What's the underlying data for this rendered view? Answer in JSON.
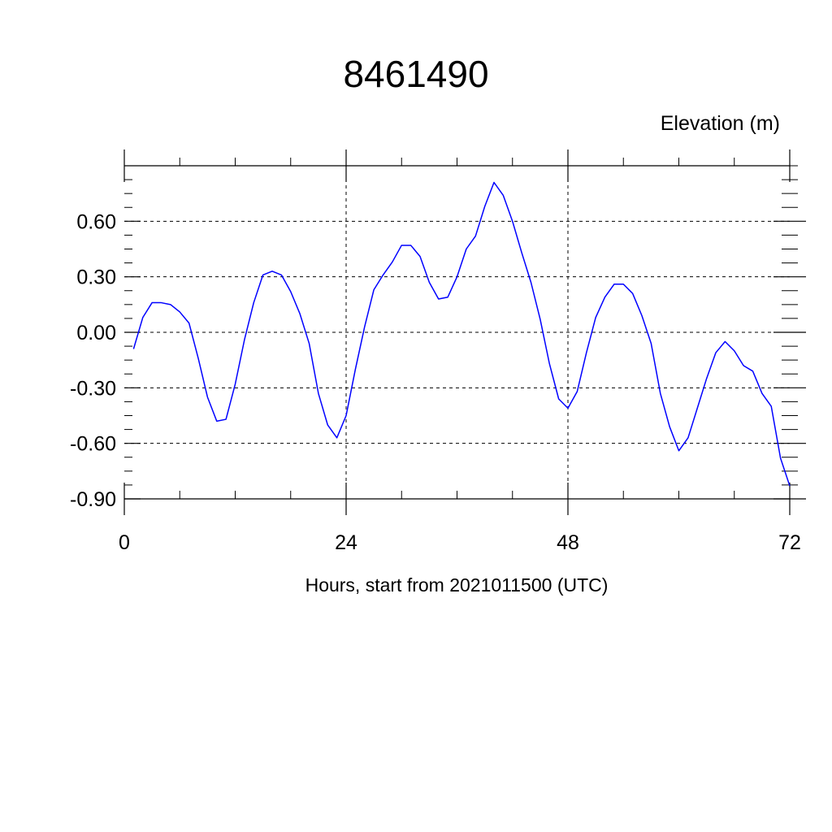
{
  "chart_data": {
    "type": "line",
    "title": "8461490",
    "ylabel": "Elevation (m)",
    "xlabel": "Hours, start from 2021011500 (UTC)",
    "xlim": [
      0,
      72
    ],
    "ylim": [
      -0.9,
      0.9
    ],
    "x_ticks": [
      0,
      24,
      48,
      72
    ],
    "x_tick_labels": [
      "0",
      "24",
      "48",
      "72"
    ],
    "y_ticks": [
      -0.9,
      -0.6,
      -0.3,
      0.0,
      0.3,
      0.6
    ],
    "y_tick_labels": [
      "-0.90",
      "-0.60",
      "-0.30",
      "0.00",
      "0.30",
      "0.60"
    ],
    "grid": true,
    "series": [
      {
        "color": "#0000ff",
        "x": [
          1,
          2,
          3,
          4,
          5,
          6,
          7,
          8,
          9,
          10,
          11,
          12,
          13,
          14,
          15,
          16,
          17,
          18,
          19,
          20,
          21,
          22,
          23,
          24,
          25,
          26,
          27,
          28,
          29,
          30,
          31,
          32,
          33,
          34,
          35,
          36,
          37,
          38,
          39,
          40,
          41,
          42,
          43,
          44,
          45,
          46,
          47,
          48,
          49,
          50,
          51,
          52,
          53,
          54,
          55,
          56,
          57,
          58,
          59,
          60,
          61,
          62,
          63,
          64,
          65,
          66,
          67,
          68,
          69,
          70,
          71,
          72
        ],
        "values": [
          -0.09,
          0.08,
          0.16,
          0.16,
          0.15,
          0.11,
          0.05,
          -0.14,
          -0.35,
          -0.48,
          -0.47,
          -0.28,
          -0.04,
          0.16,
          0.31,
          0.33,
          0.31,
          0.22,
          0.1,
          -0.06,
          -0.33,
          -0.5,
          -0.57,
          -0.45,
          -0.2,
          0.03,
          0.23,
          0.31,
          0.38,
          0.47,
          0.47,
          0.41,
          0.27,
          0.18,
          0.19,
          0.3,
          0.45,
          0.52,
          0.68,
          0.81,
          0.74,
          0.6,
          0.43,
          0.27,
          0.07,
          -0.17,
          -0.36,
          -0.41,
          -0.32,
          -0.11,
          0.08,
          0.19,
          0.26,
          0.26,
          0.21,
          0.09,
          -0.06,
          -0.33,
          -0.51,
          -0.64,
          -0.57,
          -0.41,
          -0.25,
          -0.11,
          -0.05,
          -0.1,
          -0.18,
          -0.21,
          -0.33,
          -0.4,
          -0.68,
          -0.83
        ]
      }
    ]
  }
}
